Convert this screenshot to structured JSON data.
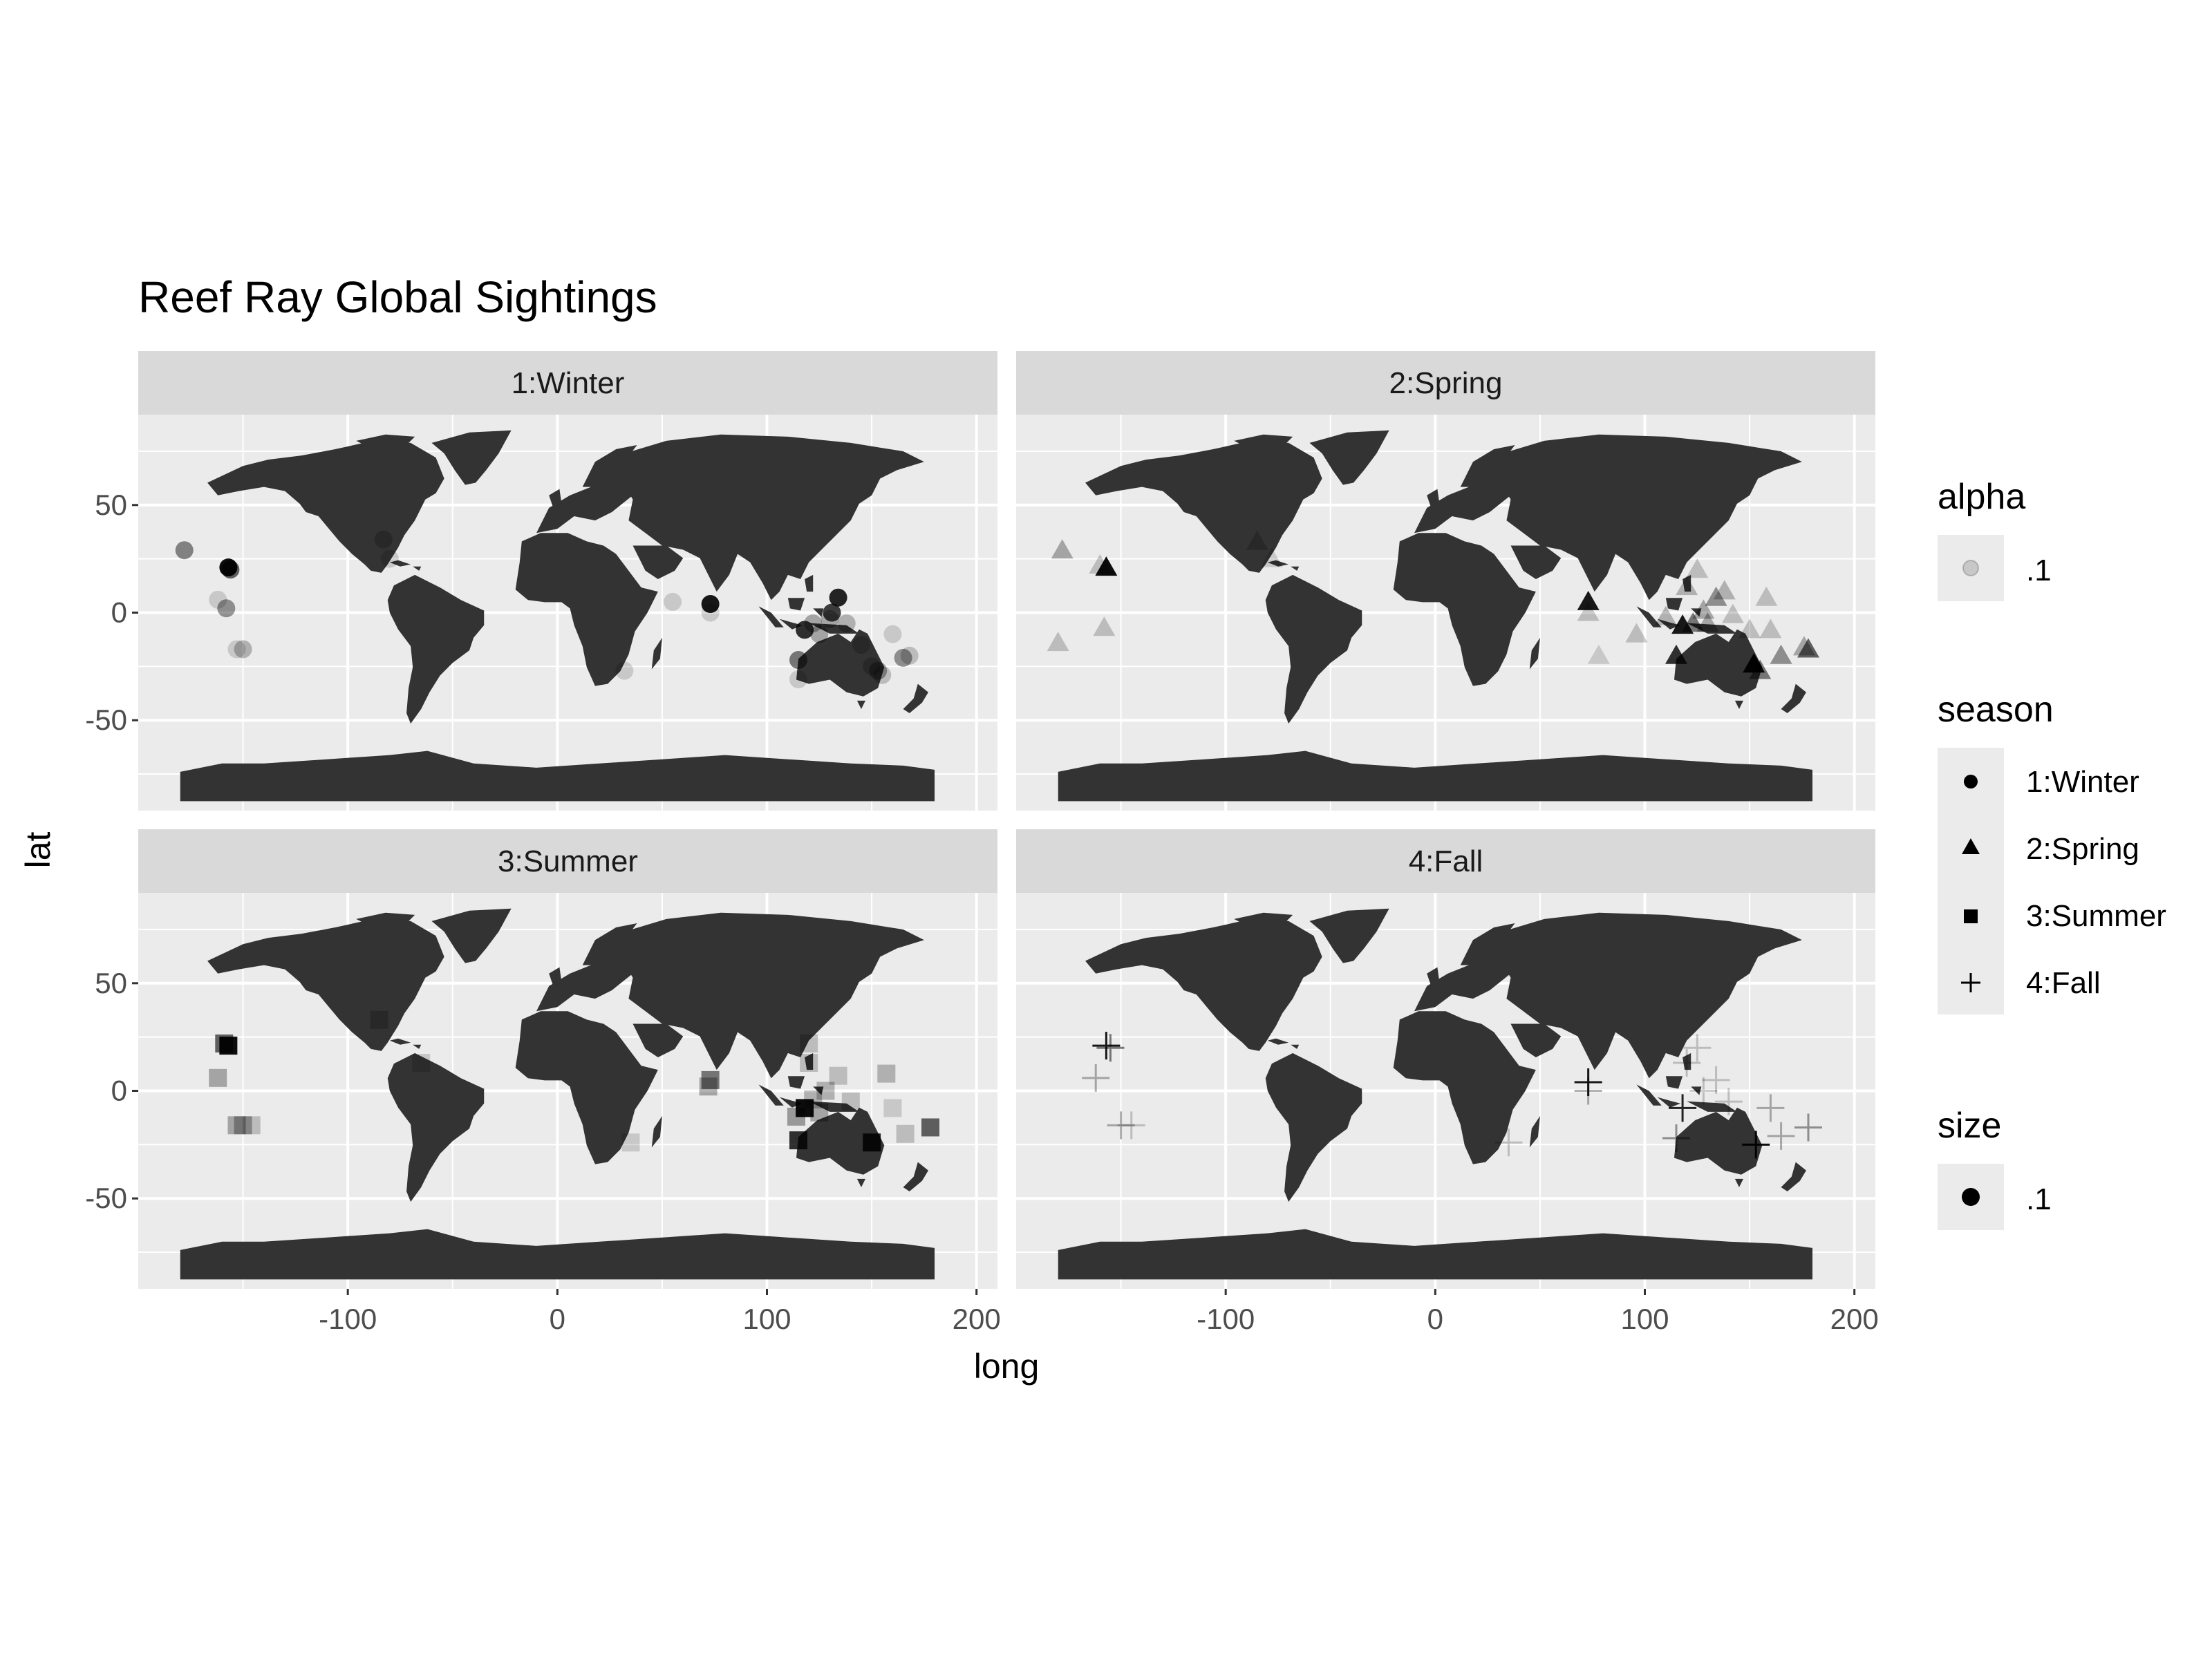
{
  "chart_data": {
    "type": "scatter",
    "title": "Reef Ray Global Sightings",
    "xlabel": "long",
    "ylabel": "lat",
    "xlim": [
      -200,
      210
    ],
    "ylim": [
      -92,
      92
    ],
    "x_ticks": [
      -100,
      0,
      100,
      200
    ],
    "x_tick_labels": [
      "-100",
      "0",
      "100",
      "200"
    ],
    "y_ticks": [
      50,
      0,
      -50
    ],
    "y_tick_labels": [
      "50",
      "0",
      "-50"
    ],
    "grid": true,
    "background": "#EBEBEB",
    "land_color": "#333333",
    "facets": [
      {
        "label": "1:Winter",
        "shape": "circle",
        "points": [
          {
            "x": -178,
            "y": 29,
            "a": 0.45
          },
          {
            "x": -157,
            "y": 21,
            "a": 0.95
          },
          {
            "x": -156,
            "y": 20,
            "a": 0.6
          },
          {
            "x": -162,
            "y": 6,
            "a": 0.15
          },
          {
            "x": -158,
            "y": 2,
            "a": 0.4
          },
          {
            "x": -150,
            "y": -17,
            "a": 0.25
          },
          {
            "x": -153,
            "y": -17,
            "a": 0.15
          },
          {
            "x": -80,
            "y": 25,
            "a": 0.15
          },
          {
            "x": -83,
            "y": 34,
            "a": 0.2
          },
          {
            "x": 32,
            "y": -27,
            "a": 0.15
          },
          {
            "x": 55,
            "y": 5,
            "a": 0.15
          },
          {
            "x": 73,
            "y": 4,
            "a": 0.9
          },
          {
            "x": 73,
            "y": 0,
            "a": 0.15
          },
          {
            "x": 115,
            "y": -22,
            "a": 0.5
          },
          {
            "x": 115,
            "y": -31,
            "a": 0.15
          },
          {
            "x": 118,
            "y": -8,
            "a": 0.8
          },
          {
            "x": 122,
            "y": -5,
            "a": 0.3
          },
          {
            "x": 125,
            "y": -10,
            "a": 0.3
          },
          {
            "x": 130,
            "y": -3,
            "a": 0.3
          },
          {
            "x": 134,
            "y": 7,
            "a": 0.85
          },
          {
            "x": 131,
            "y": 0,
            "a": 0.75
          },
          {
            "x": 138,
            "y": -5,
            "a": 0.25
          },
          {
            "x": 145,
            "y": -15,
            "a": 0.2
          },
          {
            "x": 150,
            "y": -25,
            "a": 0.2
          },
          {
            "x": 153,
            "y": -27,
            "a": 0.35
          },
          {
            "x": 155,
            "y": -29,
            "a": 0.2
          },
          {
            "x": 160,
            "y": -10,
            "a": 0.15
          },
          {
            "x": 165,
            "y": -21,
            "a": 0.4
          },
          {
            "x": 168,
            "y": -20,
            "a": 0.2
          }
        ]
      },
      {
        "label": "2:Spring",
        "shape": "triangle",
        "points": [
          {
            "x": -178,
            "y": 29,
            "a": 0.3
          },
          {
            "x": -157,
            "y": 21,
            "a": 0.95
          },
          {
            "x": -160,
            "y": 22,
            "a": 0.2
          },
          {
            "x": -158,
            "y": -7,
            "a": 0.2
          },
          {
            "x": -180,
            "y": -14,
            "a": 0.2
          },
          {
            "x": -85,
            "y": 33,
            "a": 0.2
          },
          {
            "x": -78,
            "y": 25,
            "a": 0.15
          },
          {
            "x": 73,
            "y": 5,
            "a": 0.9
          },
          {
            "x": 73,
            "y": 0,
            "a": 0.2
          },
          {
            "x": 78,
            "y": -20,
            "a": 0.15
          },
          {
            "x": 96,
            "y": -10,
            "a": 0.2
          },
          {
            "x": 110,
            "y": -2,
            "a": 0.25
          },
          {
            "x": 115,
            "y": -20,
            "a": 0.8
          },
          {
            "x": 118,
            "y": -6,
            "a": 0.9
          },
          {
            "x": 120,
            "y": 12,
            "a": 0.25
          },
          {
            "x": 123,
            "y": -5,
            "a": 0.5
          },
          {
            "x": 125,
            "y": 20,
            "a": 0.2
          },
          {
            "x": 128,
            "y": 1,
            "a": 0.3
          },
          {
            "x": 130,
            "y": -5,
            "a": 0.3
          },
          {
            "x": 134,
            "y": 7,
            "a": 0.4
          },
          {
            "x": 138,
            "y": 10,
            "a": 0.25
          },
          {
            "x": 142,
            "y": -1,
            "a": 0.2
          },
          {
            "x": 150,
            "y": -8,
            "a": 0.2
          },
          {
            "x": 152,
            "y": -24,
            "a": 0.95
          },
          {
            "x": 155,
            "y": -27,
            "a": 0.5
          },
          {
            "x": 158,
            "y": 7,
            "a": 0.2
          },
          {
            "x": 160,
            "y": -8,
            "a": 0.2
          },
          {
            "x": 165,
            "y": -20,
            "a": 0.4
          },
          {
            "x": 178,
            "y": -17,
            "a": 0.6
          },
          {
            "x": 176,
            "y": -16,
            "a": 0.3
          }
        ]
      },
      {
        "label": "3:Summer",
        "shape": "square",
        "points": [
          {
            "x": -157,
            "y": 21,
            "a": 0.95
          },
          {
            "x": -159,
            "y": 22,
            "a": 0.6
          },
          {
            "x": -162,
            "y": 6,
            "a": 0.3
          },
          {
            "x": -150,
            "y": -16,
            "a": 0.3
          },
          {
            "x": -153,
            "y": -16,
            "a": 0.3
          },
          {
            "x": -146,
            "y": -16,
            "a": 0.2
          },
          {
            "x": -85,
            "y": 33,
            "a": 0.2
          },
          {
            "x": -65,
            "y": 13,
            "a": 0.15
          },
          {
            "x": 35,
            "y": -24,
            "a": 0.15
          },
          {
            "x": 73,
            "y": 5,
            "a": 0.5
          },
          {
            "x": 72,
            "y": 2,
            "a": 0.3
          },
          {
            "x": 115,
            "y": -23,
            "a": 0.8
          },
          {
            "x": 118,
            "y": -8,
            "a": 0.95
          },
          {
            "x": 120,
            "y": 13,
            "a": 0.2
          },
          {
            "x": 120,
            "y": 22,
            "a": 0.2
          },
          {
            "x": 114,
            "y": -12,
            "a": 0.35
          },
          {
            "x": 122,
            "y": -4,
            "a": 0.25
          },
          {
            "x": 125,
            "y": -10,
            "a": 0.3
          },
          {
            "x": 128,
            "y": 0,
            "a": 0.25
          },
          {
            "x": 134,
            "y": 7,
            "a": 0.2
          },
          {
            "x": 140,
            "y": -5,
            "a": 0.2
          },
          {
            "x": 150,
            "y": -24,
            "a": 0.85
          },
          {
            "x": 157,
            "y": 8,
            "a": 0.25
          },
          {
            "x": 160,
            "y": -8,
            "a": 0.15
          },
          {
            "x": 166,
            "y": -20,
            "a": 0.2
          },
          {
            "x": 178,
            "y": -17,
            "a": 0.6
          }
        ]
      },
      {
        "label": "4:Fall",
        "shape": "cross",
        "points": [
          {
            "x": -157,
            "y": 21,
            "a": 0.9
          },
          {
            "x": -155,
            "y": 20,
            "a": 0.5
          },
          {
            "x": -162,
            "y": 6,
            "a": 0.3
          },
          {
            "x": -150,
            "y": -16,
            "a": 0.3
          },
          {
            "x": -145,
            "y": -16,
            "a": 0.2
          },
          {
            "x": 35,
            "y": -24,
            "a": 0.2
          },
          {
            "x": 73,
            "y": 4,
            "a": 0.9
          },
          {
            "x": 73,
            "y": 0,
            "a": 0.3
          },
          {
            "x": 115,
            "y": -22,
            "a": 0.4
          },
          {
            "x": 118,
            "y": -8,
            "a": 0.85
          },
          {
            "x": 120,
            "y": 13,
            "a": 0.2
          },
          {
            "x": 125,
            "y": 20,
            "a": 0.2
          },
          {
            "x": 128,
            "y": 0,
            "a": 0.2
          },
          {
            "x": 134,
            "y": 5,
            "a": 0.2
          },
          {
            "x": 140,
            "y": -5,
            "a": 0.2
          },
          {
            "x": 153,
            "y": -25,
            "a": 0.95
          },
          {
            "x": 160,
            "y": -8,
            "a": 0.3
          },
          {
            "x": 165,
            "y": -21,
            "a": 0.3
          },
          {
            "x": 178,
            "y": -17,
            "a": 0.4
          }
        ]
      }
    ],
    "legends": {
      "alpha": {
        "title": "alpha",
        "entries": [
          ".1"
        ]
      },
      "season": {
        "title": "season",
        "entries": [
          "1:Winter",
          "2:Spring",
          "3:Summer",
          "4:Fall"
        ],
        "shapes": [
          "circle",
          "triangle",
          "square",
          "cross"
        ]
      },
      "size": {
        "title": "size",
        "entries": [
          ".1"
        ]
      }
    }
  }
}
